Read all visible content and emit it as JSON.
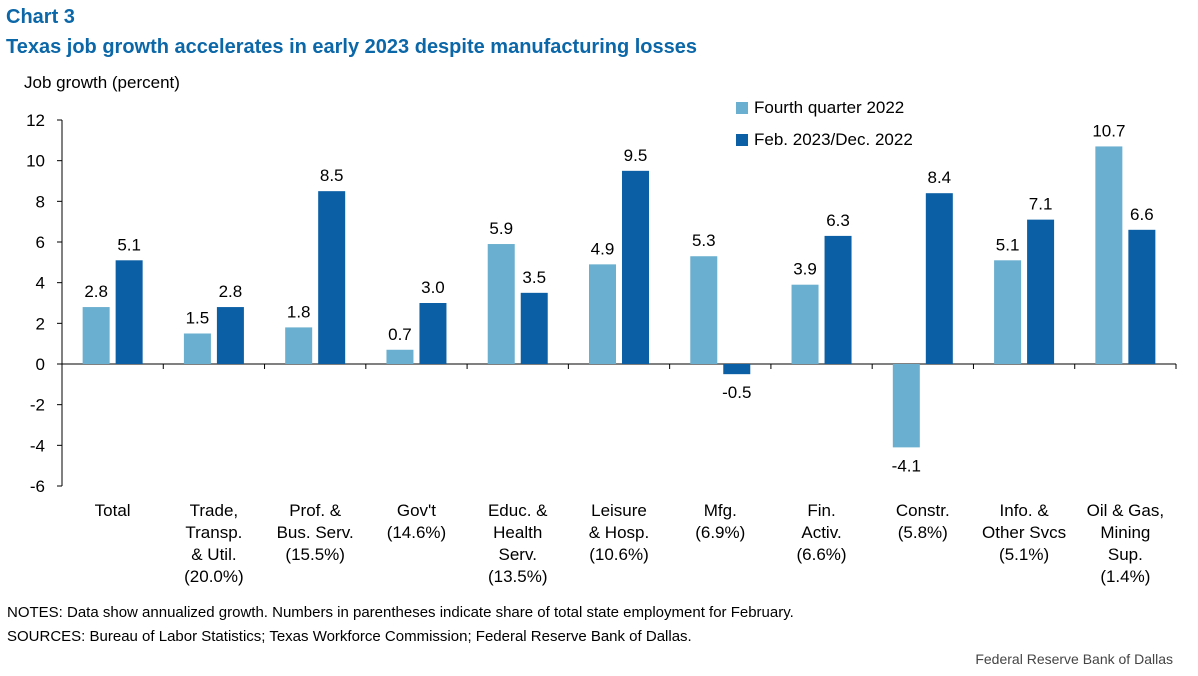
{
  "header": {
    "chart_number": "Chart 3",
    "title": "Texas job growth accelerates in early 2023 despite manufacturing losses"
  },
  "colors": {
    "series1": "#6aafcf",
    "series2": "#0b5fa5",
    "title": "#0b67a8"
  },
  "chart_data": {
    "type": "bar",
    "title": "Texas job growth accelerates in early 2023 despite manufacturing losses",
    "ylabel": "Job growth (percent)",
    "xlabel": "",
    "ylim": [
      -6,
      12
    ],
    "yticks": [
      12,
      10,
      8,
      6,
      4,
      2,
      0,
      -2,
      -4,
      -6
    ],
    "grid": false,
    "legend_position": "top-right",
    "categories": [
      [
        "Total"
      ],
      [
        "Trade,",
        "Transp.",
        "& Util.",
        "(20.0%)"
      ],
      [
        "Prof. &",
        "Bus. Serv.",
        "(15.5%)"
      ],
      [
        "Gov't",
        "(14.6%)"
      ],
      [
        "Educ. &",
        "Health",
        "Serv.",
        "(13.5%)"
      ],
      [
        "Leisure",
        "& Hosp.",
        "(10.6%)"
      ],
      [
        "Mfg.",
        "(6.9%)"
      ],
      [
        "Fin.",
        "Activ.",
        "(6.6%)"
      ],
      [
        "Constr.",
        "(5.8%)"
      ],
      [
        "Info. &",
        "Other Svcs",
        "(5.1%)"
      ],
      [
        "Oil & Gas,",
        "Mining",
        "Sup.",
        "(1.4%)"
      ]
    ],
    "series": [
      {
        "name": "Fourth quarter 2022",
        "values": [
          2.8,
          1.5,
          1.8,
          0.7,
          5.9,
          4.9,
          5.3,
          3.9,
          -4.1,
          5.1,
          10.7
        ],
        "labels": [
          "2.8",
          "1.5",
          "1.8",
          "0.7",
          "5.9",
          "4.9",
          "5.3",
          "3.9",
          "-4.1",
          "5.1",
          "10.7"
        ]
      },
      {
        "name": "Feb. 2023/Dec. 2022",
        "values": [
          5.1,
          2.8,
          8.5,
          3.0,
          3.5,
          9.5,
          -0.5,
          6.3,
          8.4,
          7.1,
          6.6
        ],
        "labels": [
          "5.1",
          "2.8",
          "8.5",
          "3.0",
          "3.5",
          "9.5",
          "-0.5",
          "6.3",
          "8.4",
          "7.1",
          "6.6"
        ]
      }
    ]
  },
  "legend": {
    "items": [
      {
        "label": "Fourth quarter 2022"
      },
      {
        "label": "Feb. 2023/Dec. 2022"
      }
    ]
  },
  "footer": {
    "notes": "NOTES: Data show annualized growth. Numbers in parentheses indicate share of total state employment for February.",
    "sources": "SOURCES: Bureau of Labor Statistics; Texas Workforce Commission; Federal Reserve Bank of Dallas.",
    "credit": "Federal Reserve Bank of Dallas"
  }
}
